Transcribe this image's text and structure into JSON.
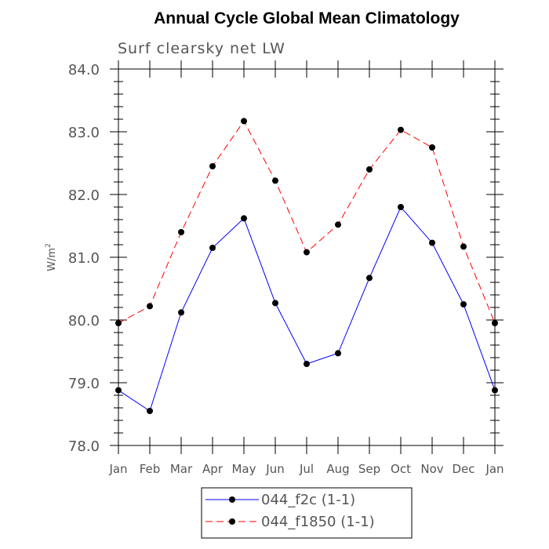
{
  "chart_data": {
    "type": "line",
    "title": "Annual Cycle Global Mean Climatology",
    "subtitle": "Surf clearsky net LW",
    "ylabel": "W/m",
    "ylabel_superscript": "2",
    "xlabel": "",
    "categories": [
      "Jan",
      "Feb",
      "Mar",
      "Apr",
      "May",
      "Jun",
      "Jul",
      "Aug",
      "Sep",
      "Oct",
      "Nov",
      "Dec",
      "Jan"
    ],
    "ylim": [
      78.0,
      84.0
    ],
    "yticks": [
      "78.0",
      "79.0",
      "80.0",
      "81.0",
      "82.0",
      "83.0",
      "84.0"
    ],
    "grid": false,
    "legend_position": "bottom-center",
    "series": [
      {
        "name": "044_f2c (1-1)",
        "color": "#0000ff",
        "dash": "solid",
        "values": [
          78.88,
          78.55,
          80.12,
          81.15,
          81.62,
          80.27,
          79.3,
          79.47,
          80.67,
          81.8,
          81.23,
          80.25,
          78.88
        ]
      },
      {
        "name": "044_f1850 (1-1)",
        "color": "#ff0000",
        "dash": "dashed",
        "values": [
          79.95,
          80.22,
          81.4,
          82.45,
          83.17,
          82.22,
          81.08,
          81.52,
          82.4,
          83.03,
          82.75,
          81.17,
          79.95
        ]
      }
    ]
  }
}
